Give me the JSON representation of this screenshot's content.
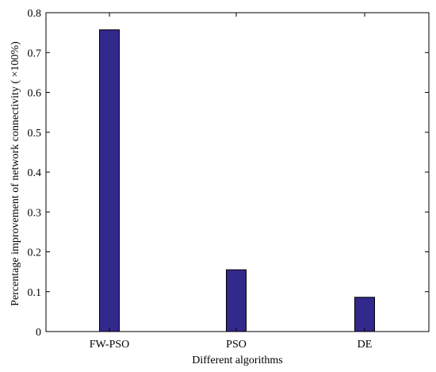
{
  "chart_data": {
    "type": "bar",
    "categories": [
      "FW-PSO",
      "PSO",
      "DE"
    ],
    "values": [
      0.757,
      0.155,
      0.086
    ],
    "xlabel": "Different algorithms",
    "ylabel": "Percentage improvement of network connectivity ( ×100%)",
    "ylim": [
      0,
      0.8
    ],
    "yticks": [
      0,
      0.1,
      0.2,
      0.3,
      0.4,
      0.5,
      0.6,
      0.7,
      0.8
    ],
    "ytick_labels": [
      "0",
      "0.1",
      "0.2",
      "0.3",
      "0.4",
      "0.5",
      "0.6",
      "0.7",
      "0.8"
    ],
    "grid": false,
    "bar_color": "#33298c",
    "bar_edge_color": "#000000"
  }
}
